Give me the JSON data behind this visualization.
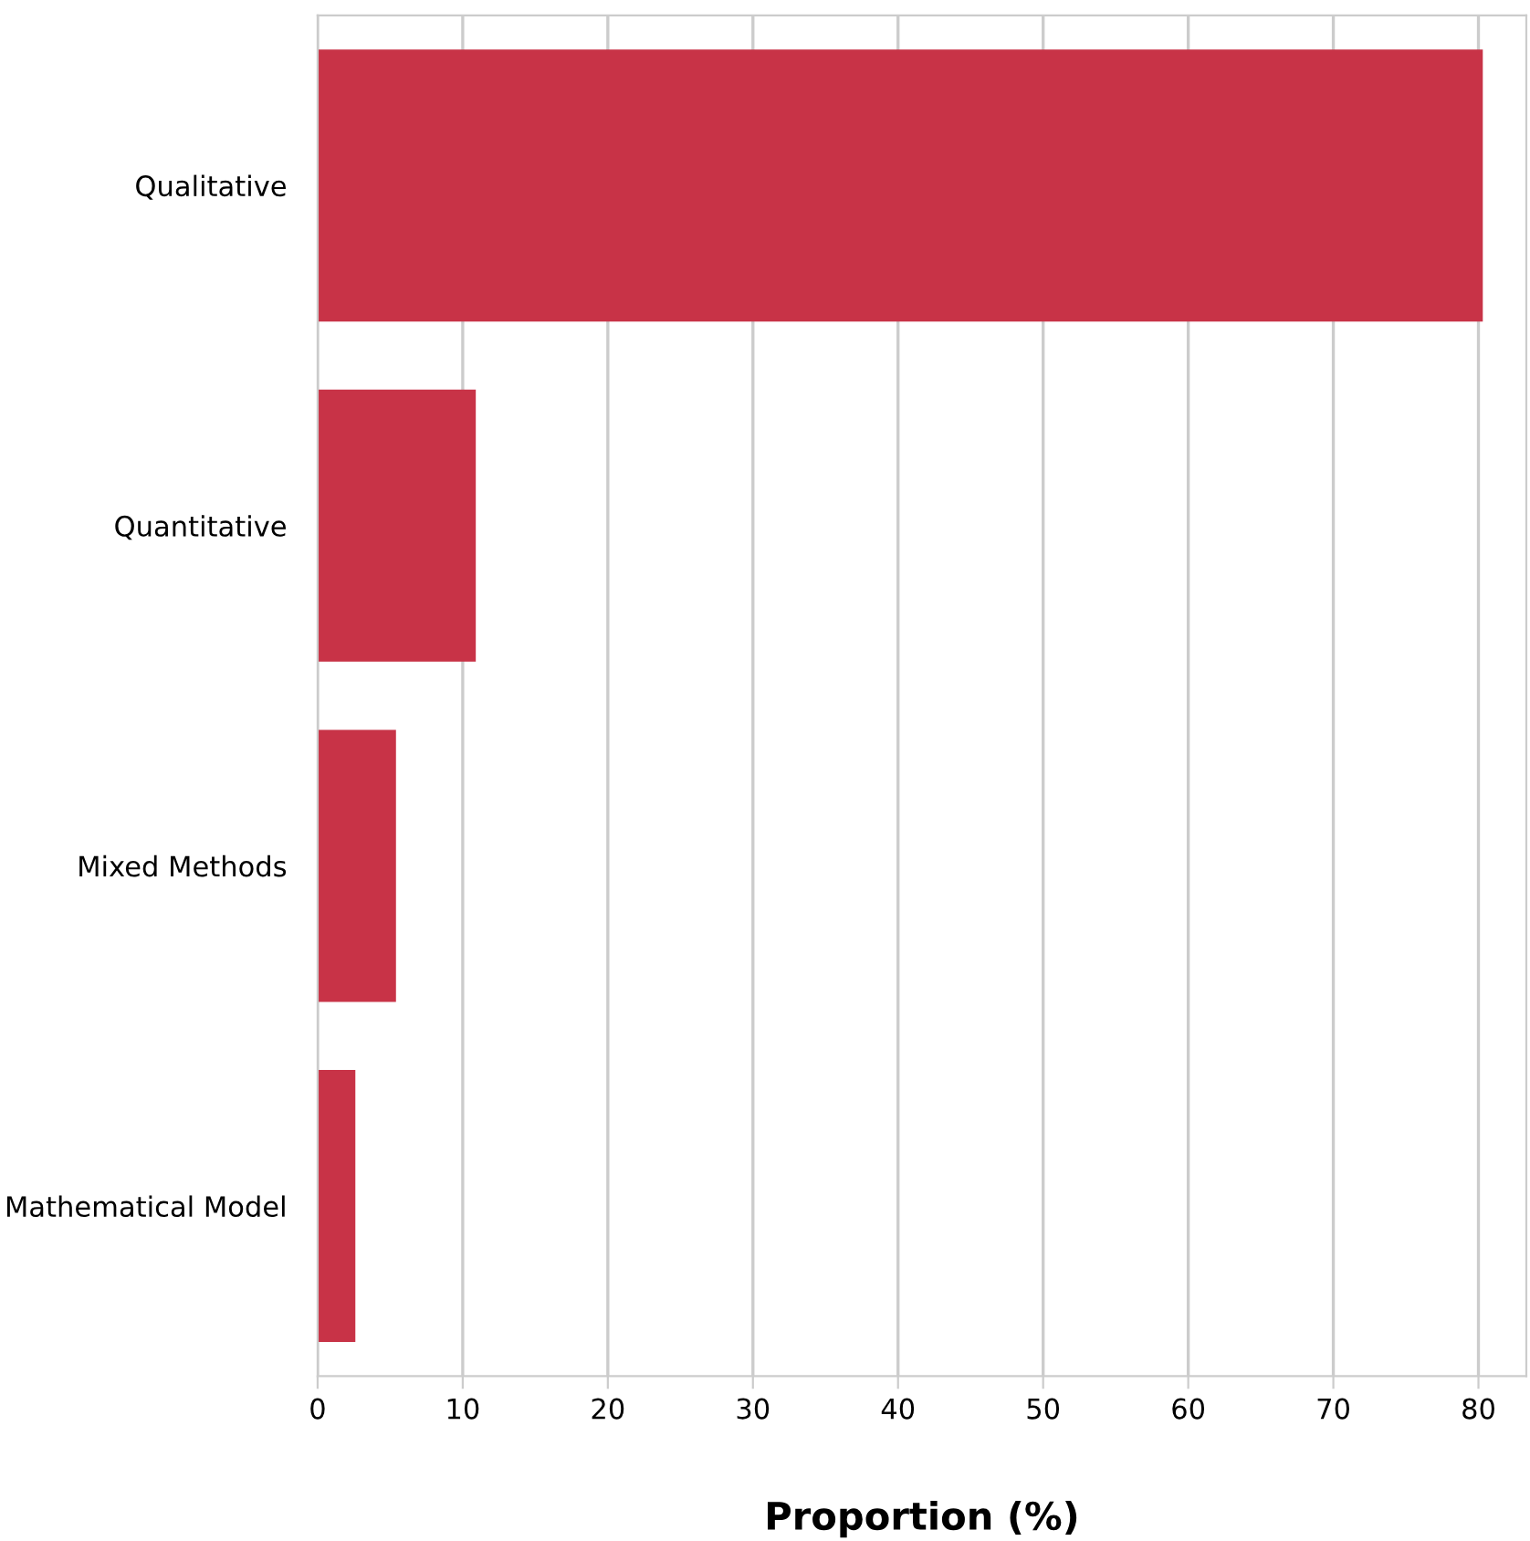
{
  "chart_data": {
    "type": "bar",
    "orientation": "horizontal",
    "xlabel": "Proportion (%)",
    "categories": [
      "Qualitative",
      "Quantitative",
      "Mixed Methods",
      "Mathematical Model"
    ],
    "values": [
      80.3,
      10.9,
      5.4,
      2.6
    ],
    "color": "#c83347",
    "xlim": [
      0,
      83.3
    ],
    "xticks": [
      0,
      10,
      20,
      30,
      40,
      50,
      60,
      70,
      80
    ],
    "grid": "x",
    "legend": false
  }
}
